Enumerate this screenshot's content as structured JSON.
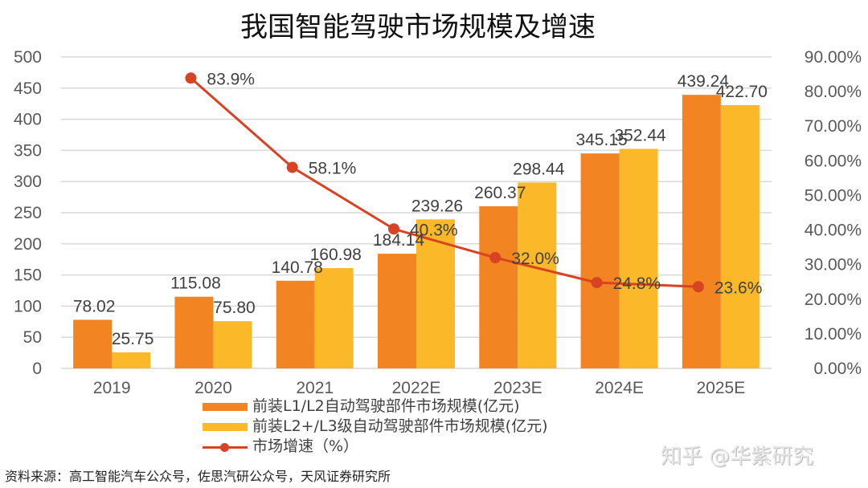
{
  "chart_data": {
    "type": "bar",
    "title": "我国智能驾驶市场规模及增速",
    "categories": [
      "2019",
      "2020",
      "2021",
      "2022E",
      "2023E",
      "2024E",
      "2025E"
    ],
    "series": [
      {
        "name": "前装L1/L2自动驾驶部件市场规模(亿元)",
        "type": "bar",
        "axis": "left",
        "color": "#f28522",
        "values": [
          78.02,
          115.08,
          140.78,
          184.14,
          260.37,
          345.15,
          439.24
        ],
        "labels": [
          "78.02",
          "115.08",
          "140.78",
          "184.14",
          "260.37",
          "345.15",
          "439.24"
        ]
      },
      {
        "name": "前装L2+/L3级自动驾驶部件市场规模(亿元)",
        "type": "bar",
        "axis": "left",
        "color": "#fbb829",
        "values": [
          25.75,
          75.8,
          160.98,
          239.26,
          298.44,
          352.44,
          422.7
        ],
        "labels": [
          "25.75",
          "75.80",
          "160.98",
          "239.26",
          "298.44",
          "352.44",
          "422.70"
        ]
      },
      {
        "name": "市场增速（%）",
        "type": "line",
        "axis": "right",
        "color": "#d84324",
        "values": [
          null,
          83.9,
          58.1,
          40.3,
          32.0,
          24.8,
          23.6
        ],
        "labels": [
          null,
          "83.9%",
          "58.1%",
          "40.3%",
          "32.0%",
          "24.8%",
          "23.6%"
        ]
      }
    ],
    "y_left": {
      "label": "",
      "lim": [
        0,
        500
      ],
      "ticks": [
        "0",
        "50",
        "100",
        "150",
        "200",
        "250",
        "300",
        "350",
        "400",
        "450",
        "500"
      ]
    },
    "y_right": {
      "label": "",
      "lim": [
        0,
        90
      ],
      "ticks": [
        "0.00%",
        "10.00%",
        "20.00%",
        "30.00%",
        "40.00%",
        "50.00%",
        "60.00%",
        "70.00%",
        "80.00%",
        "90.00%"
      ]
    },
    "xlabel": "",
    "grid": true,
    "legend_position": "bottom"
  },
  "legend": {
    "items": [
      {
        "label": "前装L1/L2自动驾驶部件市场规模(亿元)",
        "color": "#f28522"
      },
      {
        "label": "前装L2+/L3级自动驾驶部件市场规模(亿元)",
        "color": "#fbb829"
      },
      {
        "label": "市场增速（%）",
        "color": "#d84324"
      }
    ]
  },
  "source": "资料来源：高工智能汽车公众号，佐思汽研公众号，天风证券研究所",
  "watermark": "知乎 @华紫研究"
}
